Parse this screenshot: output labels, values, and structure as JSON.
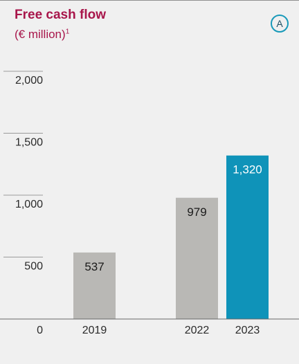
{
  "header": {
    "title": "Free cash flow",
    "subtitle": "(€ million)",
    "footnote_marker": "1",
    "badge_label": "A"
  },
  "colors": {
    "title": "#a8164b",
    "bar_gray": "#b9b8b5",
    "bar_highlight": "#0f93b9",
    "badge_ring": "#1799b9",
    "background": "#f0f0f0"
  },
  "chart_data": {
    "type": "bar",
    "title": "Free cash flow",
    "subtitle": "(€ million)",
    "categories": [
      "2019",
      "2022",
      "2023"
    ],
    "values": [
      537,
      979,
      1320
    ],
    "value_labels": [
      "537",
      "979",
      "1,320"
    ],
    "highlight": [
      false,
      false,
      true
    ],
    "yticks": [
      0,
      500,
      1000,
      1500,
      2000
    ],
    "ytick_labels": [
      "0",
      "500",
      "1,000",
      "1,500",
      "2,000"
    ],
    "ylim": [
      0,
      2000
    ],
    "xlabel": "",
    "ylabel": "",
    "grid": false,
    "legend": "none"
  }
}
